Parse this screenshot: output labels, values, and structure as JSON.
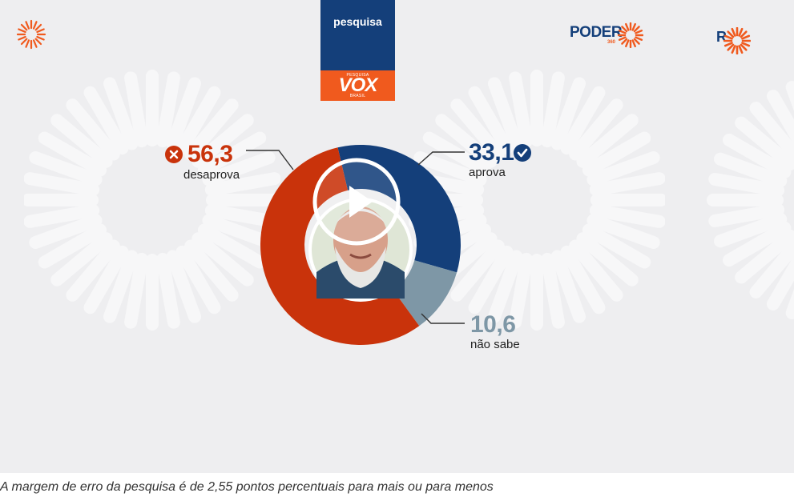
{
  "badge": {
    "top_label": "pesquisa",
    "logo_small_top": "PESQUISA",
    "logo_main": "VOX",
    "logo_small_bottom": "BRASIL"
  },
  "brand": {
    "name": "PODER",
    "suffix": "360",
    "partial_right": "R"
  },
  "colors": {
    "disapprove": "#c9330b",
    "approve": "#143f7a",
    "dont_know": "#7e97a6",
    "accent": "#f05a1e",
    "background": "#eeeef0"
  },
  "chart_data": {
    "type": "pie",
    "style": "donut",
    "slices": [
      {
        "label": "aprova",
        "value": 33.1,
        "value_text": "33,1",
        "icon": "check-circle-icon"
      },
      {
        "label": "não sabe",
        "value": 10.6,
        "value_text": "10,6"
      },
      {
        "label": "desaprova",
        "value": 56.3,
        "value_text": "56,3",
        "icon": "x-circle-icon"
      }
    ],
    "center_image": "portrait-photo"
  },
  "player": {
    "control": "play-icon"
  },
  "caption": "A margem de erro da pesquisa é de 2,55 pontos percentuais para mais ou para menos"
}
